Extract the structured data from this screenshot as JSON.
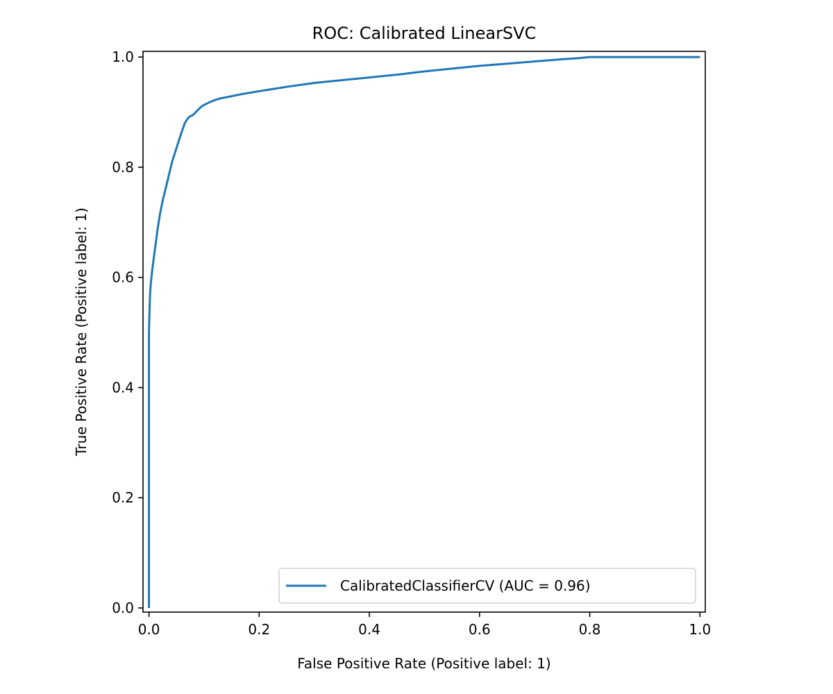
{
  "chart_data": {
    "type": "line",
    "title": "ROC: Calibrated LinearSVC",
    "xlabel": "False Positive Rate (Positive label: 1)",
    "ylabel": "True Positive Rate (Positive label: 1)",
    "xlim": [
      0.0,
      1.0
    ],
    "ylim": [
      0.0,
      1.0
    ],
    "xticks": [
      {
        "value": 0.0,
        "label": "0.0"
      },
      {
        "value": 0.2,
        "label": "0.2"
      },
      {
        "value": 0.4,
        "label": "0.4"
      },
      {
        "value": 0.6,
        "label": "0.6"
      },
      {
        "value": 0.8,
        "label": "0.8"
      },
      {
        "value": 1.0,
        "label": "1.0"
      }
    ],
    "yticks": [
      {
        "value": 0.0,
        "label": "0.0"
      },
      {
        "value": 0.2,
        "label": "0.2"
      },
      {
        "value": 0.4,
        "label": "0.4"
      },
      {
        "value": 0.6,
        "label": "0.6"
      },
      {
        "value": 0.8,
        "label": "0.8"
      },
      {
        "value": 1.0,
        "label": "1.0"
      }
    ],
    "grid": false,
    "legend_position": "lower-right",
    "series": [
      {
        "name": "CalibratedClassifierCV (AUC = 0.96)",
        "color": "#1f77b4",
        "x": [
          0.0,
          0.0,
          0.001,
          0.002,
          0.003,
          0.004,
          0.005,
          0.008,
          0.012,
          0.016,
          0.02,
          0.025,
          0.03,
          0.036,
          0.042,
          0.05,
          0.058,
          0.065,
          0.07,
          0.074,
          0.08,
          0.085,
          0.09,
          0.095,
          0.1,
          0.11,
          0.12,
          0.13,
          0.15,
          0.17,
          0.2,
          0.25,
          0.3,
          0.35,
          0.4,
          0.45,
          0.5,
          0.55,
          0.6,
          0.65,
          0.7,
          0.75,
          0.78,
          0.8,
          0.85,
          0.9,
          0.95,
          1.0
        ],
        "y": [
          0.0,
          0.5,
          0.54,
          0.57,
          0.585,
          0.595,
          0.605,
          0.63,
          0.66,
          0.69,
          0.715,
          0.74,
          0.76,
          0.785,
          0.81,
          0.835,
          0.86,
          0.88,
          0.888,
          0.892,
          0.895,
          0.9,
          0.905,
          0.91,
          0.913,
          0.918,
          0.922,
          0.925,
          0.929,
          0.933,
          0.938,
          0.946,
          0.953,
          0.958,
          0.963,
          0.968,
          0.974,
          0.979,
          0.984,
          0.988,
          0.992,
          0.996,
          0.998,
          1.0,
          1.0,
          1.0,
          1.0,
          1.0
        ]
      }
    ]
  }
}
